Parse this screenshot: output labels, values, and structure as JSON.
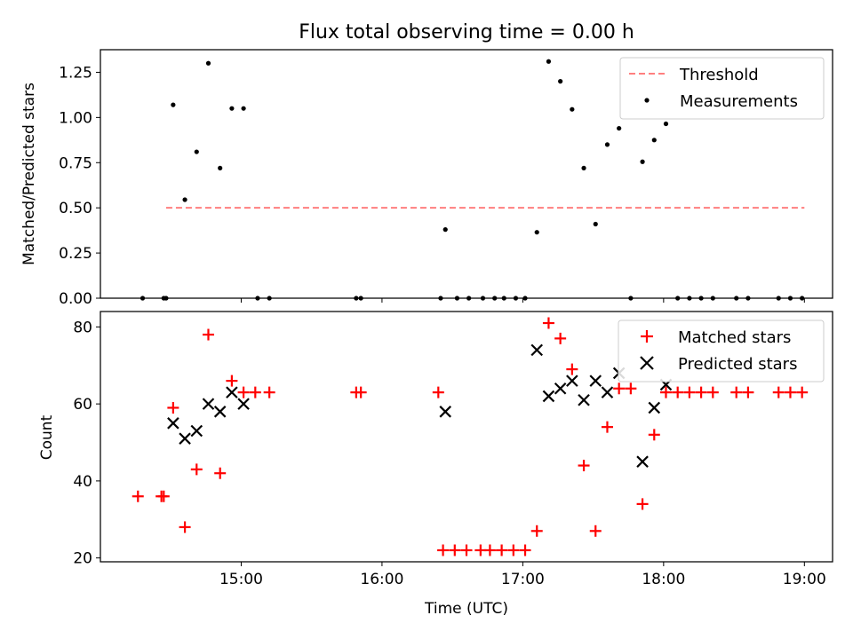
{
  "chart_data": [
    {
      "type": "scatter",
      "title": "Flux total observing time = 0.00 h",
      "xlabel": "",
      "ylabel": "Matched/Predicted stars",
      "ylim": [
        0,
        1.375
      ],
      "yticks": [
        "0.00",
        "0.25",
        "0.50",
        "0.75",
        "1.00",
        "1.25"
      ],
      "xlim_hours": [
        14.0,
        19.2
      ],
      "xticks": [
        "15:00",
        "16:00",
        "17:00",
        "18:00",
        "19:00"
      ],
      "legend_position": "top-right",
      "legend": [
        "Threshold",
        "Measurements"
      ],
      "threshold": {
        "name": "Threshold",
        "value": 0.5,
        "x_start": "14:28",
        "x_end": "19:00",
        "color": "#ff7f7f",
        "style": "dashed"
      },
      "series": [
        {
          "name": "Measurements",
          "color": "#000000",
          "marker": "dot",
          "points": [
            [
              "14:18",
              0.0
            ],
            [
              "14:27",
              0.0
            ],
            [
              "14:28",
              0.0
            ],
            [
              "14:31",
              1.07
            ],
            [
              "14:36",
              0.545
            ],
            [
              "14:41",
              0.81
            ],
            [
              "14:46",
              1.3
            ],
            [
              "14:51",
              0.72
            ],
            [
              "14:56",
              1.05
            ],
            [
              "15:01",
              1.05
            ],
            [
              "15:07",
              0.0
            ],
            [
              "15:12",
              0.0
            ],
            [
              "15:49",
              0.0
            ],
            [
              "15:51",
              0.0
            ],
            [
              "16:25",
              0.0
            ],
            [
              "16:27",
              0.38
            ],
            [
              "16:32",
              0.0
            ],
            [
              "16:37",
              0.0
            ],
            [
              "16:43",
              0.0
            ],
            [
              "16:48",
              0.0
            ],
            [
              "16:52",
              0.0
            ],
            [
              "16:57",
              0.0
            ],
            [
              "17:01",
              0.0
            ],
            [
              "17:06",
              0.365
            ],
            [
              "17:11",
              1.31
            ],
            [
              "17:16",
              1.2
            ],
            [
              "17:21",
              1.045
            ],
            [
              "17:26",
              0.72
            ],
            [
              "17:31",
              0.41
            ],
            [
              "17:36",
              0.85
            ],
            [
              "17:41",
              0.94
            ],
            [
              "17:46",
              0.0
            ],
            [
              "17:51",
              0.755
            ],
            [
              "17:56",
              0.875
            ],
            [
              "18:01",
              0.965
            ],
            [
              "18:06",
              0.0
            ],
            [
              "18:11",
              0.0
            ],
            [
              "18:16",
              0.0
            ],
            [
              "18:21",
              0.0
            ],
            [
              "18:31",
              0.0
            ],
            [
              "18:36",
              0.0
            ],
            [
              "18:49",
              0.0
            ],
            [
              "18:54",
              0.0
            ],
            [
              "18:59",
              0.0
            ]
          ]
        }
      ]
    },
    {
      "type": "scatter",
      "title": "",
      "xlabel": "Time (UTC)",
      "ylabel": "Count",
      "ylim": [
        19,
        84
      ],
      "yticks": [
        "20",
        "40",
        "60",
        "80"
      ],
      "xlim_hours": [
        14.0,
        19.2
      ],
      "xticks": [
        "15:00",
        "16:00",
        "17:00",
        "18:00",
        "19:00"
      ],
      "legend_position": "top-right",
      "legend": [
        "Matched stars",
        "Predicted stars"
      ],
      "series": [
        {
          "name": "Matched stars",
          "color": "#ff0000",
          "marker": "plus",
          "points": [
            [
              "14:16",
              36
            ],
            [
              "14:26",
              36
            ],
            [
              "14:27",
              36
            ],
            [
              "14:31",
              59
            ],
            [
              "14:36",
              28
            ],
            [
              "14:41",
              43
            ],
            [
              "14:46",
              78
            ],
            [
              "14:51",
              42
            ],
            [
              "14:56",
              66
            ],
            [
              "15:01",
              63
            ],
            [
              "15:06",
              63
            ],
            [
              "15:12",
              63
            ],
            [
              "15:49",
              63
            ],
            [
              "15:51",
              63
            ],
            [
              "16:24",
              63
            ],
            [
              "16:26",
              22
            ],
            [
              "16:31",
              22
            ],
            [
              "16:36",
              22
            ],
            [
              "16:42",
              22
            ],
            [
              "16:46",
              22
            ],
            [
              "16:51",
              22
            ],
            [
              "16:56",
              22
            ],
            [
              "17:01",
              22
            ],
            [
              "17:06",
              27
            ],
            [
              "17:11",
              81
            ],
            [
              "17:16",
              77
            ],
            [
              "17:21",
              69
            ],
            [
              "17:26",
              44
            ],
            [
              "17:31",
              27
            ],
            [
              "17:36",
              54
            ],
            [
              "17:41",
              64
            ],
            [
              "17:46",
              64
            ],
            [
              "17:51",
              34
            ],
            [
              "17:56",
              52
            ],
            [
              "18:01",
              63
            ],
            [
              "18:06",
              63
            ],
            [
              "18:11",
              63
            ],
            [
              "18:16",
              63
            ],
            [
              "18:21",
              63
            ],
            [
              "18:31",
              63
            ],
            [
              "18:36",
              63
            ],
            [
              "18:49",
              63
            ],
            [
              "18:54",
              63
            ],
            [
              "18:59",
              63
            ]
          ]
        },
        {
          "name": "Predicted stars",
          "color": "#000000",
          "marker": "x",
          "points": [
            [
              "14:31",
              55
            ],
            [
              "14:36",
              51
            ],
            [
              "14:41",
              53
            ],
            [
              "14:46",
              60
            ],
            [
              "14:51",
              58
            ],
            [
              "14:56",
              63
            ],
            [
              "15:01",
              60
            ],
            [
              "16:27",
              58
            ],
            [
              "17:06",
              74
            ],
            [
              "17:11",
              62
            ],
            [
              "17:16",
              64
            ],
            [
              "17:21",
              66
            ],
            [
              "17:26",
              61
            ],
            [
              "17:31",
              66
            ],
            [
              "17:36",
              63
            ],
            [
              "17:41",
              68
            ],
            [
              "17:51",
              45
            ],
            [
              "17:56",
              59
            ],
            [
              "18:01",
              65
            ]
          ]
        }
      ]
    }
  ]
}
